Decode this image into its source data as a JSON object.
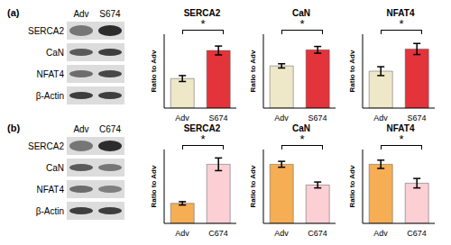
{
  "blots": [
    {
      "label": "(a)",
      "lanes": [
        "Adv",
        "S674"
      ],
      "rows": [
        "SERCA2",
        "CaN",
        "NFAT4",
        "β-Actin"
      ]
    },
    {
      "label": "(b)",
      "lanes": [
        "Adv",
        "C674"
      ],
      "rows": [
        "SERCA2",
        "CaN",
        "NFAT4",
        "β-Actin"
      ]
    }
  ],
  "chart_data": [
    {
      "type": "bar",
      "title": "SERCA2",
      "y_label": "Ratio to Adv",
      "categories": [
        "Adv",
        "S674"
      ],
      "values": [
        1.0,
        1.95
      ],
      "error": [
        0.1,
        0.15
      ],
      "colors": [
        "#efe8c8",
        "#e3333b"
      ],
      "ylim": [
        0,
        2.5
      ],
      "tick_labels": "x",
      "annotations": [
        "*"
      ]
    },
    {
      "type": "bar",
      "title": "CaN",
      "y_label": "Ratio to Adv",
      "categories": [
        "Adv",
        "S674"
      ],
      "values": [
        1.0,
        1.38
      ],
      "error": [
        0.05,
        0.08
      ],
      "colors": [
        "#efe8c8",
        "#e3333b"
      ],
      "ylim": [
        0,
        1.75
      ],
      "tick_labels": "x",
      "annotations": [
        "*"
      ]
    },
    {
      "type": "bar",
      "title": "NFAT4",
      "y_label": "Ratio to Adv",
      "categories": [
        "Adv",
        "S674"
      ],
      "values": [
        1.0,
        1.6
      ],
      "error": [
        0.12,
        0.15
      ],
      "colors": [
        "#efe8c8",
        "#e3333b"
      ],
      "ylim": [
        0,
        2.0
      ],
      "tick_labels": "x",
      "annotations": [
        "*"
      ]
    },
    {
      "type": "bar",
      "title": "SERCA2",
      "y_label": "Ratio to Adv",
      "categories": [
        "Adv",
        "C674"
      ],
      "values": [
        0.95,
        2.8
      ],
      "error": [
        0.08,
        0.3
      ],
      "colors": [
        "#f6ae55",
        "#fbcfd3"
      ],
      "ylim": [
        0,
        3.5
      ],
      "tick_labels": "x",
      "annotations": [
        "*"
      ]
    },
    {
      "type": "bar",
      "title": "CaN",
      "y_label": "Ratio to Adv",
      "categories": [
        "Adv",
        "C674"
      ],
      "values": [
        1.0,
        0.65
      ],
      "error": [
        0.05,
        0.05
      ],
      "colors": [
        "#f6ae55",
        "#fbcfd3"
      ],
      "ylim": [
        0,
        1.25
      ],
      "tick_labels": "x",
      "annotations": [
        "*"
      ]
    },
    {
      "type": "bar",
      "title": "NFAT4",
      "y_label": "Ratio to Adv",
      "categories": [
        "Adv",
        "C674"
      ],
      "values": [
        1.0,
        0.68
      ],
      "error": [
        0.07,
        0.08
      ],
      "colors": [
        "#f6ae55",
        "#fbcfd3"
      ],
      "ylim": [
        0,
        1.25
      ],
      "tick_labels": "x",
      "annotations": [
        "*"
      ]
    }
  ]
}
